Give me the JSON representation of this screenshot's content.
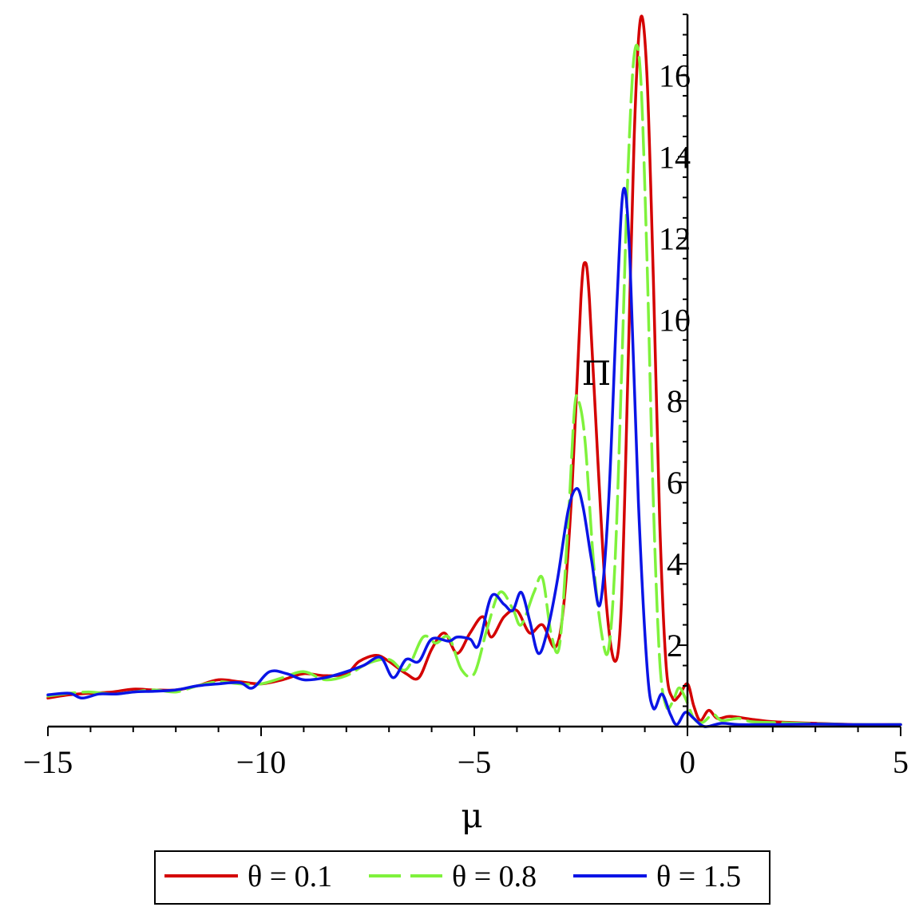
{
  "chart_data": {
    "type": "line",
    "xlabel": "μ",
    "ylabel": "Π",
    "xlim": [
      -15,
      5
    ],
    "ylim": [
      0,
      17.5
    ],
    "x_ticks": [
      {
        "value": -15,
        "label": "−15"
      },
      {
        "value": -10,
        "label": "−10"
      },
      {
        "value": -5,
        "label": "−5"
      },
      {
        "value": 0,
        "label": "0"
      },
      {
        "value": 5,
        "label": "5"
      }
    ],
    "y_ticks": [
      {
        "value": 2,
        "label": "2"
      },
      {
        "value": 4,
        "label": "4"
      },
      {
        "value": 6,
        "label": "6"
      },
      {
        "value": 8,
        "label": "8"
      },
      {
        "value": 10,
        "label": "10"
      },
      {
        "value": 12,
        "label": "12"
      },
      {
        "value": 14,
        "label": "14"
      },
      {
        "value": 16,
        "label": "16"
      }
    ],
    "grid": false,
    "legend_position": "bottom",
    "series": [
      {
        "name": "θ = 0.1",
        "color": "#d40000",
        "dash": "solid",
        "points": [
          [
            -15,
            0.7
          ],
          [
            -14.5,
            0.78
          ],
          [
            -14,
            0.82
          ],
          [
            -13.5,
            0.85
          ],
          [
            -13,
            0.92
          ],
          [
            -12.5,
            0.9
          ],
          [
            -12,
            0.9
          ],
          [
            -11.5,
            1.0
          ],
          [
            -11,
            1.15
          ],
          [
            -10.5,
            1.1
          ],
          [
            -10,
            1.05
          ],
          [
            -9.5,
            1.15
          ],
          [
            -9,
            1.3
          ],
          [
            -8.5,
            1.25
          ],
          [
            -8,
            1.3
          ],
          [
            -7.7,
            1.6
          ],
          [
            -7.3,
            1.75
          ],
          [
            -7,
            1.6
          ],
          [
            -6.6,
            1.3
          ],
          [
            -6.3,
            1.2
          ],
          [
            -6,
            1.9
          ],
          [
            -5.7,
            2.3
          ],
          [
            -5.4,
            1.8
          ],
          [
            -5.1,
            2.3
          ],
          [
            -4.8,
            2.7
          ],
          [
            -4.6,
            2.2
          ],
          [
            -4.3,
            2.7
          ],
          [
            -4,
            2.85
          ],
          [
            -3.7,
            2.3
          ],
          [
            -3.4,
            2.5
          ],
          [
            -3.1,
            1.95
          ],
          [
            -2.9,
            3.0
          ],
          [
            -2.7,
            6.0
          ],
          [
            -2.5,
            10.5
          ],
          [
            -2.4,
            11.4
          ],
          [
            -2.3,
            10.5
          ],
          [
            -2.1,
            6.5
          ],
          [
            -1.9,
            3.0
          ],
          [
            -1.7,
            1.6
          ],
          [
            -1.55,
            3.0
          ],
          [
            -1.4,
            8.5
          ],
          [
            -1.25,
            14.5
          ],
          [
            -1.1,
            17.4
          ],
          [
            -0.95,
            16.0
          ],
          [
            -0.8,
            11.0
          ],
          [
            -0.65,
            5.0
          ],
          [
            -0.5,
            1.5
          ],
          [
            -0.35,
            0.7
          ],
          [
            -0.2,
            0.75
          ],
          [
            0,
            1.05
          ],
          [
            0.15,
            0.5
          ],
          [
            0.3,
            0.15
          ],
          [
            0.5,
            0.4
          ],
          [
            0.7,
            0.2
          ],
          [
            1,
            0.25
          ],
          [
            1.5,
            0.18
          ],
          [
            2,
            0.12
          ],
          [
            3,
            0.08
          ],
          [
            4,
            0.05
          ],
          [
            5,
            0.05
          ]
        ]
      },
      {
        "name": "θ = 0.8",
        "color": "#7ff23c",
        "dash": "dashed",
        "points": [
          [
            -15,
            0.75
          ],
          [
            -14.5,
            0.82
          ],
          [
            -14,
            0.85
          ],
          [
            -13.5,
            0.8
          ],
          [
            -13,
            0.85
          ],
          [
            -12.5,
            0.9
          ],
          [
            -12,
            0.85
          ],
          [
            -11.5,
            1.0
          ],
          [
            -11,
            1.1
          ],
          [
            -10.5,
            1.05
          ],
          [
            -10,
            1.05
          ],
          [
            -9.5,
            1.2
          ],
          [
            -9,
            1.35
          ],
          [
            -8.5,
            1.15
          ],
          [
            -8,
            1.25
          ],
          [
            -7.5,
            1.55
          ],
          [
            -7,
            1.65
          ],
          [
            -6.6,
            1.4
          ],
          [
            -6.2,
            2.2
          ],
          [
            -5.9,
            2.05
          ],
          [
            -5.6,
            2.2
          ],
          [
            -5.3,
            1.4
          ],
          [
            -5,
            1.3
          ],
          [
            -4.7,
            2.4
          ],
          [
            -4.4,
            3.3
          ],
          [
            -4.1,
            2.9
          ],
          [
            -3.9,
            2.5
          ],
          [
            -3.6,
            3.3
          ],
          [
            -3.4,
            3.65
          ],
          [
            -3.2,
            2.3
          ],
          [
            -3.0,
            2.0
          ],
          [
            -2.8,
            5.0
          ],
          [
            -2.65,
            7.8
          ],
          [
            -2.55,
            8.0
          ],
          [
            -2.4,
            7.0
          ],
          [
            -2.2,
            4.0
          ],
          [
            -2.0,
            2.2
          ],
          [
            -1.85,
            1.9
          ],
          [
            -1.7,
            4.0
          ],
          [
            -1.55,
            8.5
          ],
          [
            -1.4,
            13.5
          ],
          [
            -1.25,
            16.5
          ],
          [
            -1.1,
            16.0
          ],
          [
            -0.95,
            11.5
          ],
          [
            -0.8,
            5.5
          ],
          [
            -0.65,
            1.6
          ],
          [
            -0.5,
            0.5
          ],
          [
            -0.35,
            0.6
          ],
          [
            -0.2,
            0.95
          ],
          [
            -0.05,
            0.7
          ],
          [
            0.15,
            0.2
          ],
          [
            0.35,
            0.1
          ],
          [
            0.6,
            0.3
          ],
          [
            0.8,
            0.15
          ],
          [
            1.2,
            0.2
          ],
          [
            1.5,
            0.12
          ],
          [
            2,
            0.1
          ],
          [
            3,
            0.07
          ],
          [
            4,
            0.05
          ],
          [
            5,
            0.05
          ]
        ]
      },
      {
        "name": "θ = 1.5",
        "color": "#0a14e6",
        "dash": "solid",
        "points": [
          [
            -15,
            0.78
          ],
          [
            -14.5,
            0.82
          ],
          [
            -14.2,
            0.7
          ],
          [
            -13.8,
            0.8
          ],
          [
            -13.4,
            0.8
          ],
          [
            -13,
            0.85
          ],
          [
            -12.5,
            0.87
          ],
          [
            -12,
            0.9
          ],
          [
            -11.5,
            1.0
          ],
          [
            -11,
            1.05
          ],
          [
            -10.5,
            1.08
          ],
          [
            -10.2,
            0.95
          ],
          [
            -9.8,
            1.35
          ],
          [
            -9.4,
            1.3
          ],
          [
            -9,
            1.15
          ],
          [
            -8.5,
            1.2
          ],
          [
            -8,
            1.35
          ],
          [
            -7.6,
            1.5
          ],
          [
            -7.2,
            1.7
          ],
          [
            -6.9,
            1.2
          ],
          [
            -6.6,
            1.65
          ],
          [
            -6.3,
            1.6
          ],
          [
            -6,
            2.15
          ],
          [
            -5.6,
            2.1
          ],
          [
            -5.4,
            2.2
          ],
          [
            -5.1,
            2.15
          ],
          [
            -4.9,
            2.0
          ],
          [
            -4.6,
            3.2
          ],
          [
            -4.3,
            3.0
          ],
          [
            -4.1,
            2.85
          ],
          [
            -3.9,
            3.3
          ],
          [
            -3.7,
            2.6
          ],
          [
            -3.5,
            1.8
          ],
          [
            -3.3,
            2.3
          ],
          [
            -3.05,
            3.6
          ],
          [
            -2.8,
            5.3
          ],
          [
            -2.6,
            5.85
          ],
          [
            -2.45,
            5.4
          ],
          [
            -2.25,
            4.1
          ],
          [
            -2.05,
            3.0
          ],
          [
            -1.85,
            5.5
          ],
          [
            -1.65,
            10.5
          ],
          [
            -1.5,
            13.2
          ],
          [
            -1.35,
            11.5
          ],
          [
            -1.15,
            5.5
          ],
          [
            -0.95,
            1.5
          ],
          [
            -0.8,
            0.45
          ],
          [
            -0.6,
            0.8
          ],
          [
            -0.4,
            0.3
          ],
          [
            -0.25,
            0.05
          ],
          [
            -0.05,
            0.35
          ],
          [
            0.15,
            0.2
          ],
          [
            0.4,
            0.0
          ],
          [
            0.8,
            0.08
          ],
          [
            1.2,
            0.05
          ],
          [
            2,
            0.05
          ],
          [
            3,
            0.06
          ],
          [
            4,
            0.05
          ],
          [
            5,
            0.05
          ]
        ]
      }
    ]
  }
}
